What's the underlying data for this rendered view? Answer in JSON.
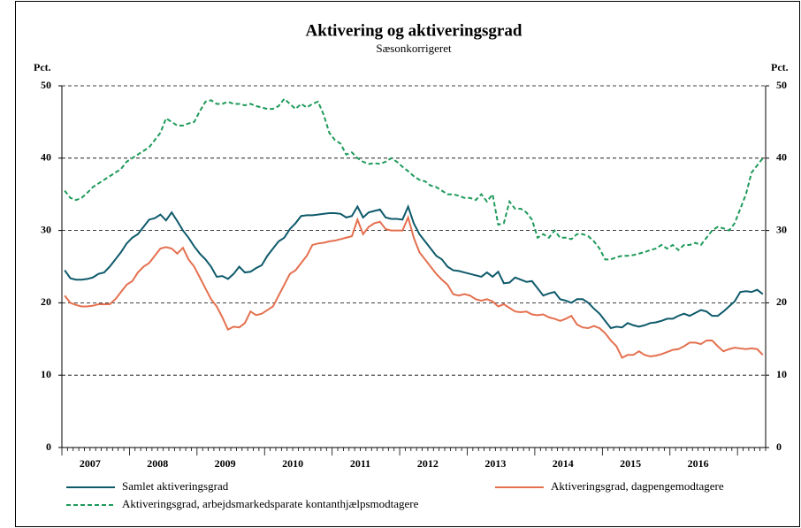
{
  "chart_data": {
    "type": "line",
    "title": "Aktivering og aktiveringsgrad",
    "subtitle": "Sæsonkorrigeret",
    "y_label": "Pct.",
    "categories": [
      null,
      null,
      null,
      null,
      null,
      "2007",
      null,
      null,
      null,
      null,
      null,
      null,
      null,
      null,
      null,
      null,
      null,
      "2008",
      null,
      null,
      null,
      null,
      null,
      null,
      null,
      null,
      null,
      null,
      null,
      "2009",
      null,
      null,
      null,
      null,
      null,
      null,
      null,
      null,
      null,
      null,
      null,
      "2010",
      null,
      null,
      null,
      null,
      null,
      null,
      null,
      null,
      null,
      null,
      null,
      "2011",
      null,
      null,
      null,
      null,
      null,
      null,
      null,
      null,
      null,
      null,
      null,
      "2012",
      null,
      null,
      null,
      null,
      null,
      null,
      null,
      null,
      null,
      null,
      null,
      "2013",
      null,
      null,
      null,
      null,
      null,
      null,
      null,
      null,
      null,
      null,
      null,
      "2014",
      null,
      null,
      null,
      null,
      null,
      null,
      null,
      null,
      null,
      null,
      null,
      "2015",
      null,
      null,
      null,
      null,
      null,
      null,
      null,
      null,
      null,
      null,
      null,
      "2016",
      null,
      null,
      null,
      null,
      null,
      null,
      null,
      null,
      null,
      null,
      null
    ],
    "series": [
      {
        "name": "Samlet aktiveringsgrad",
        "color": "#0e5a6b",
        "dash": false,
        "values": [
          24.5,
          23.4,
          23.2,
          23.2,
          23.3,
          23.5,
          24,
          24.2,
          25,
          26,
          27,
          28.2,
          29,
          29.5,
          30.5,
          31.5,
          31.7,
          32.2,
          31.4,
          32.5,
          31.3,
          30,
          29,
          27.8,
          26.8,
          26,
          25,
          23.6,
          23.7,
          23.3,
          24,
          25,
          24.2,
          24.3,
          24.8,
          25.2,
          26.5,
          27.5,
          28.5,
          29,
          30.2,
          31,
          32,
          32.1,
          32.1,
          32.2,
          32.3,
          32.4,
          32.4,
          32.3,
          31.8,
          32,
          33.3,
          31.8,
          32.5,
          32.7,
          32.9,
          31.8,
          31.6,
          31.6,
          31.5,
          33.3,
          31,
          29.5,
          28.5,
          27.5,
          26.5,
          26,
          25,
          24.5,
          24.4,
          24.2,
          24,
          23.8,
          23.6,
          24.2,
          23.6,
          24.3,
          22.7,
          22.8,
          23.5,
          23.2,
          22.9,
          23,
          22,
          21,
          21.3,
          21.5,
          20.5,
          20.3,
          20,
          20.5,
          20.5,
          20,
          19.2,
          18.5,
          17.5,
          16.5,
          16.7,
          16.6,
          17.2,
          16.9,
          16.7,
          16.9,
          17.2,
          17.3,
          17.5,
          17.8,
          17.8,
          18.2,
          18.5,
          18.2,
          18.6,
          19,
          18.8,
          18.2,
          18.2,
          18.8,
          19.5,
          20.2,
          21.5,
          21.6,
          21.5,
          21.8,
          21.2
        ]
      },
      {
        "name": "Aktiveringsgrad, dagpengemodtagere",
        "color": "#e4704f",
        "dash": false,
        "values": [
          21,
          20,
          19.7,
          19.5,
          19.5,
          19.6,
          19.8,
          19.8,
          19.8,
          20.5,
          21.5,
          22.5,
          23,
          24.2,
          25,
          25.5,
          26.5,
          27.5,
          27.7,
          27.5,
          26.8,
          27.6,
          26,
          25,
          23.5,
          22,
          20.5,
          19.5,
          18,
          16.3,
          16.7,
          16.6,
          17.2,
          18.8,
          18.3,
          18.5,
          19,
          19.5,
          21,
          22.5,
          24,
          24.5,
          25.5,
          26.5,
          28,
          28.2,
          28.3,
          28.5,
          28.6,
          28.8,
          29,
          29.2,
          31.5,
          29.5,
          30.5,
          31,
          31.2,
          30.2,
          30,
          30,
          30,
          31.8,
          29,
          27,
          26,
          25,
          24,
          23.2,
          22.5,
          21.2,
          21,
          21.2,
          21,
          20.5,
          20.3,
          20.5,
          20.2,
          19.5,
          19.8,
          19.3,
          18.8,
          18.7,
          18.8,
          18.4,
          18.3,
          18.4,
          18,
          17.8,
          17.5,
          17.8,
          18.2,
          17,
          16.6,
          16.5,
          16.8,
          16.5,
          15.8,
          14.8,
          14,
          12.4,
          12.8,
          12.8,
          13.3,
          12.8,
          12.6,
          12.7,
          12.9,
          13.2,
          13.5,
          13.6,
          14,
          14.5,
          14.5,
          14.3,
          14.8,
          14.8,
          14,
          13.3,
          13.6,
          13.8,
          13.7,
          13.6,
          13.7,
          13.6,
          12.8
        ]
      },
      {
        "name": "Aktiveringsgrad, arbejdsmarkedsparate kontanthjælpsmodtagere",
        "color": "#1e9a5a",
        "dash": true,
        "values": [
          35.5,
          34.5,
          34.2,
          34.5,
          35.2,
          36,
          36.5,
          37,
          37.5,
          38,
          38.5,
          39.5,
          40,
          40.5,
          41,
          41.5,
          42.5,
          43.5,
          45.5,
          45,
          44.5,
          44.5,
          44.8,
          45,
          46.5,
          47.8,
          48,
          47.5,
          47.5,
          47.8,
          47.5,
          47.5,
          47.3,
          47.5,
          47.2,
          47,
          46.8,
          46.8,
          47.2,
          48.2,
          47.5,
          46.8,
          47.5,
          47,
          47.5,
          47.8,
          46,
          43.5,
          42.5,
          42,
          40.5,
          40.8,
          40,
          39.5,
          39.2,
          39.3,
          39.2,
          39.5,
          40,
          39.5,
          38.8,
          38.2,
          37.5,
          37,
          36.8,
          36.2,
          36,
          35.5,
          35,
          35,
          34.8,
          34.5,
          34.5,
          34.2,
          35,
          34,
          35,
          30.8,
          31,
          34,
          33,
          33,
          32.5,
          31.5,
          29,
          29.5,
          29,
          30,
          29,
          29,
          28.8,
          29.5,
          29.5,
          29.2,
          28.5,
          27.5,
          26,
          26,
          26.3,
          26.5,
          26.5,
          26.6,
          26.8,
          27,
          27.3,
          27.5,
          28,
          27.5,
          28,
          27.3,
          28,
          28,
          28.3,
          28,
          29,
          30,
          30.5,
          30.3,
          30,
          31,
          33,
          35,
          38,
          39,
          40
        ]
      }
    ],
    "ylim": [
      0,
      50
    ],
    "yticks": [
      0,
      10,
      20,
      30,
      40,
      50
    ],
    "y2lim": [
      0,
      50
    ],
    "y2ticks": [
      0,
      10,
      20,
      30,
      40,
      50
    ],
    "grid": true,
    "legend": "bottom"
  }
}
